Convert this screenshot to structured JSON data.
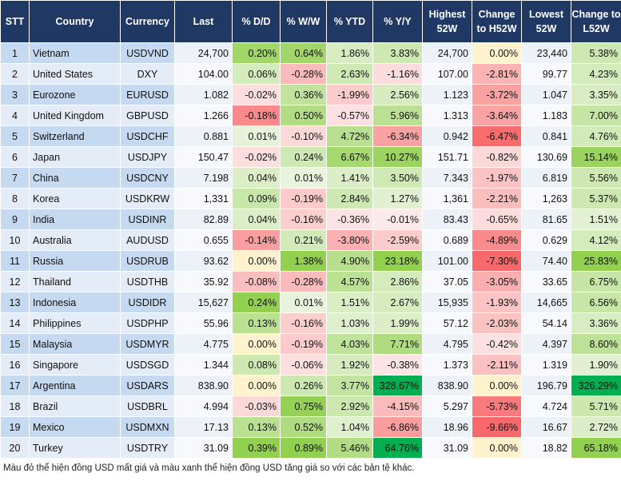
{
  "table": {
    "header": [
      "STT",
      "Country",
      "Currency",
      "Last",
      "% D/D",
      "% W/W",
      "% YTD",
      "% Y/Y",
      "Highest 52W",
      "Change to H52W",
      "Lowest 52W",
      "Change to L52W"
    ],
    "rows": [
      [
        "1",
        "Vietnam",
        "USDVND",
        "24,700",
        "0.20%",
        "0.64%",
        "1.86%",
        "3.83%",
        "24,700",
        "0.00%",
        "23,440",
        "5.38%"
      ],
      [
        "2",
        "United States",
        "DXY",
        "104.00",
        "0.06%",
        "-0.28%",
        "2.63%",
        "-1.16%",
        "107.00",
        "-2.81%",
        "99.77",
        "4.23%"
      ],
      [
        "3",
        "Eurozone",
        "EURUSD",
        "1.082",
        "-0.02%",
        "0.36%",
        "-1.99%",
        "2.56%",
        "1.123",
        "-3.72%",
        "1.047",
        "3.35%"
      ],
      [
        "4",
        "United Kingdom",
        "GBPUSD",
        "1.266",
        "-0.18%",
        "0.50%",
        "-0.57%",
        "5.96%",
        "1.313",
        "-3.64%",
        "1.183",
        "7.00%"
      ],
      [
        "5",
        "Switzerland",
        "USDCHF",
        "0.881",
        "0.01%",
        "-0.10%",
        "4.72%",
        "-6.34%",
        "0.942",
        "-6.47%",
        "0.841",
        "4.76%"
      ],
      [
        "6",
        "Japan",
        "USDJPY",
        "150.47",
        "-0.02%",
        "0.24%",
        "6.67%",
        "10.27%",
        "151.71",
        "-0.82%",
        "130.69",
        "15.14%"
      ],
      [
        "7",
        "China",
        "USDCNY",
        "7.198",
        "0.04%",
        "0.01%",
        "1.41%",
        "3.50%",
        "7.343",
        "-1.97%",
        "6.819",
        "5.56%"
      ],
      [
        "8",
        "Korea",
        "USDKRW",
        "1,331",
        "0.09%",
        "-0.19%",
        "2.84%",
        "1.27%",
        "1,361",
        "-2.21%",
        "1,263",
        "5.37%"
      ],
      [
        "9",
        "India",
        "USDINR",
        "82.89",
        "0.04%",
        "-0.16%",
        "-0.36%",
        "-0.01%",
        "83.43",
        "-0.65%",
        "81.65",
        "1.51%"
      ],
      [
        "10",
        "Australia",
        "AUDUSD",
        "0.655",
        "-0.14%",
        "0.21%",
        "-3.80%",
        "-2.59%",
        "0.689",
        "-4.89%",
        "0.629",
        "4.12%"
      ],
      [
        "11",
        "Russia",
        "USDRUB",
        "93.62",
        "0.00%",
        "1.38%",
        "4.90%",
        "23.18%",
        "101.00",
        "-7.30%",
        "74.40",
        "25.83%"
      ],
      [
        "12",
        "Thailand",
        "USDTHB",
        "35.92",
        "-0.08%",
        "-0.28%",
        "4.57%",
        "2.86%",
        "37.05",
        "-3.05%",
        "33.65",
        "6.75%"
      ],
      [
        "13",
        "Indonesia",
        "USDIDR",
        "15,627",
        "0.24%",
        "0.01%",
        "1.51%",
        "2.67%",
        "15,935",
        "-1.93%",
        "14,665",
        "6.56%"
      ],
      [
        "14",
        "Philippines",
        "USDPHP",
        "55.96",
        "0.13%",
        "-0.16%",
        "1.03%",
        "1.99%",
        "57.12",
        "-2.03%",
        "54.14",
        "3.36%"
      ],
      [
        "15",
        "Malaysia",
        "USDMYR",
        "4.775",
        "0.00%",
        "-0.19%",
        "4.03%",
        "7.71%",
        "4.795",
        "-0.42%",
        "4.397",
        "8.60%"
      ],
      [
        "16",
        "Singapore",
        "USDSGD",
        "1.344",
        "0.08%",
        "-0.06%",
        "1.92%",
        "-0.38%",
        "1.373",
        "-2.11%",
        "1.319",
        "1.90%"
      ],
      [
        "17",
        "Argentina",
        "USDARS",
        "838.90",
        "0.00%",
        "0.26%",
        "3.77%",
        "328.67%",
        "838.90",
        "0.00%",
        "196.79",
        "326.29%"
      ],
      [
        "18",
        "Brazil",
        "USDBRL",
        "4.994",
        "-0.03%",
        "0.75%",
        "2.92%",
        "-4.15%",
        "5.297",
        "-5.73%",
        "4.724",
        "5.71%"
      ],
      [
        "19",
        "Mexico",
        "USDMXN",
        "17.13",
        "0.13%",
        "0.52%",
        "1.04%",
        "-6.86%",
        "18.96",
        "-9.66%",
        "16.67",
        "2.72%"
      ],
      [
        "20",
        "Turkey",
        "USDTRY",
        "31.09",
        "0.39%",
        "0.89%",
        "5.46%",
        "64.76%",
        "31.09",
        "0.00%",
        "18.82",
        "65.18%"
      ]
    ]
  },
  "note": "Màu đỏ thể hiện đồng USD mất giá và màu xanh thể hiện đồng USD tăng giá so với các bản tệ khác."
}
